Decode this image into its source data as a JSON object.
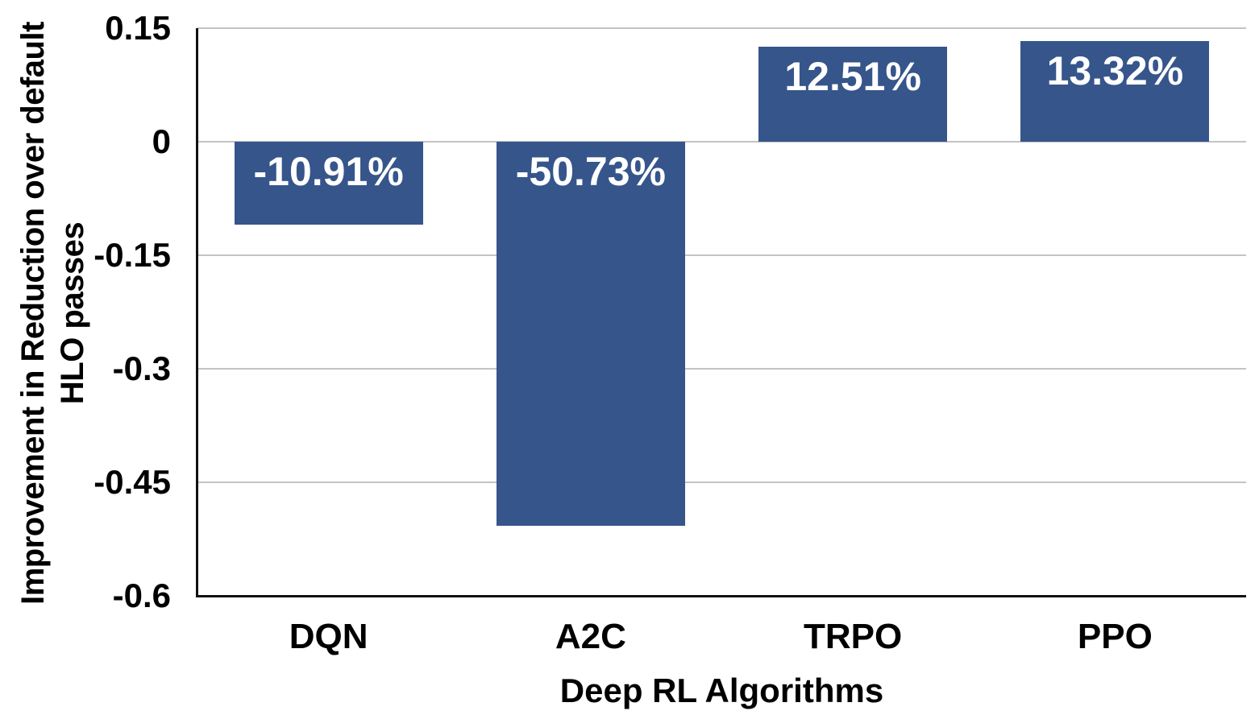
{
  "chart_data": {
    "type": "bar",
    "categories": [
      "DQN",
      "A2C",
      "TRPO",
      "PPO"
    ],
    "values": [
      -0.1091,
      -0.5073,
      0.1251,
      0.1332
    ],
    "data_labels": [
      "-10.91%",
      "-50.73%",
      "12.51%",
      "13.32%"
    ],
    "xlabel": "Deep RL Algorithms",
    "ylabel_line1": "Improvement in Reduction over default",
    "ylabel_line2": "HLO passes",
    "ylim": [
      -0.6,
      0.15
    ],
    "yticks": [
      "0.15",
      "0",
      "-0.15",
      "-0.3",
      "-0.45",
      "-0.6"
    ],
    "grid": true,
    "legend": false,
    "colors": {
      "bar": "#36558B",
      "data_label_text": "#FFFFFF",
      "gridline": "#C3C3C3",
      "axis_line": "#111111",
      "text": "#000000",
      "background": "#FFFFFF"
    }
  }
}
